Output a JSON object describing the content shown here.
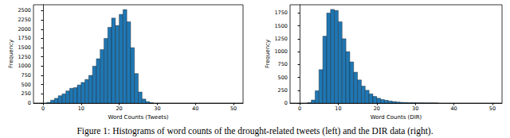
{
  "caption": "Figure 1: Histograms of word counts of the drought-related tweets (left) and the DIR data (right).",
  "chart_data": [
    {
      "type": "histogram",
      "x_label": "Word Counts (Tweets)",
      "y_label": "Frequency",
      "color": "#1f77b4",
      "grid": false,
      "bins": [
        1,
        2,
        3,
        4,
        5,
        6,
        7,
        8,
        9,
        10,
        11,
        12,
        13,
        14,
        15,
        16,
        17,
        18,
        19,
        20,
        21,
        22,
        23,
        24,
        25,
        26,
        27,
        28,
        29
      ],
      "values": [
        20,
        80,
        130,
        200,
        250,
        330,
        400,
        420,
        490,
        560,
        640,
        750,
        1000,
        1200,
        1450,
        1750,
        2050,
        2300,
        2100,
        2400,
        2530,
        2200,
        1500,
        800,
        300,
        110,
        40,
        10
      ],
      "xlim": [
        -2.5,
        52.5
      ],
      "xticks": [
        0,
        10,
        20,
        30,
        40,
        50
      ],
      "ylim": [
        0,
        2660
      ],
      "yticks": [
        0,
        250,
        500,
        750,
        1000,
        1250,
        1500,
        1750,
        2000,
        2250,
        2500
      ]
    },
    {
      "type": "histogram",
      "x_label": "Word Counts (DIR)",
      "y_label": "Frequency",
      "color": "#1f77b4",
      "grid": false,
      "bins": [
        2,
        3,
        4,
        5,
        6,
        7,
        8,
        9,
        10,
        11,
        12,
        13,
        14,
        15,
        16,
        17,
        18,
        19,
        20,
        21,
        22,
        23,
        24,
        25,
        26,
        27,
        28,
        29,
        30,
        31,
        32,
        33,
        34,
        35,
        36
      ],
      "values": [
        10,
        60,
        240,
        650,
        1300,
        1750,
        1820,
        1800,
        1580,
        1250,
        1000,
        800,
        600,
        450,
        330,
        250,
        180,
        130,
        95,
        70,
        55,
        40,
        30,
        22,
        16,
        12,
        9,
        7,
        5,
        4,
        3,
        2,
        2,
        1
      ],
      "xlim": [
        -2.5,
        52.5
      ],
      "xticks": [
        0,
        10,
        20,
        30,
        40,
        50
      ],
      "ylim": [
        0,
        1910
      ],
      "yticks": [
        0,
        250,
        500,
        750,
        1000,
        1250,
        1500,
        1750
      ]
    }
  ]
}
